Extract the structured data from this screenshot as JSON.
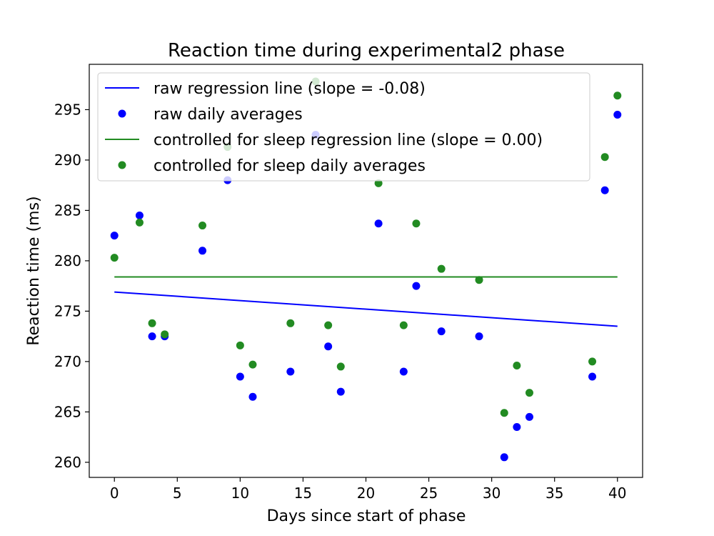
{
  "chart_data": {
    "type": "scatter",
    "title": "Reaction time during experimental2 phase",
    "xlabel": "Days since start of phase",
    "ylabel": "Reaction time (ms)",
    "xlim": [
      -2,
      42
    ],
    "ylim": [
      258.5,
      299.5
    ],
    "xticks": [
      0,
      5,
      10,
      15,
      20,
      25,
      30,
      35,
      40
    ],
    "yticks": [
      260,
      265,
      270,
      275,
      280,
      285,
      290,
      295
    ],
    "grid": false,
    "legend_position": "upper-left",
    "series": [
      {
        "name": "raw regression line (slope = -0.08)",
        "kind": "line",
        "color": "#0000ff",
        "x": [
          0,
          40
        ],
        "y": [
          276.9,
          273.5
        ]
      },
      {
        "name": "raw daily averages",
        "kind": "scatter",
        "color": "#0000ff",
        "x": [
          0,
          2,
          3,
          4,
          7,
          9,
          10,
          11,
          14,
          16,
          17,
          18,
          21,
          23,
          24,
          26,
          29,
          31,
          32,
          33,
          38,
          39,
          40
        ],
        "y": [
          282.5,
          284.5,
          272.5,
          272.5,
          281.0,
          288.0,
          268.5,
          266.5,
          269.0,
          292.5,
          271.5,
          267.0,
          283.7,
          269.0,
          277.5,
          273.0,
          272.5,
          260.5,
          263.5,
          264.5,
          268.5,
          287.0,
          294.5
        ]
      },
      {
        "name": "controlled for sleep regression line (slope = 0.00)",
        "kind": "line",
        "color": "#228b22",
        "x": [
          0,
          40
        ],
        "y": [
          278.4,
          278.4
        ]
      },
      {
        "name": "controlled for sleep daily averages",
        "kind": "scatter",
        "color": "#228b22",
        "x": [
          0,
          2,
          3,
          4,
          7,
          9,
          10,
          11,
          14,
          16,
          17,
          18,
          21,
          23,
          24,
          26,
          29,
          31,
          32,
          33,
          38,
          39,
          40
        ],
        "y": [
          280.3,
          283.8,
          273.8,
          272.7,
          283.5,
          291.3,
          271.6,
          269.7,
          273.8,
          297.8,
          273.6,
          269.5,
          287.7,
          273.6,
          283.7,
          279.2,
          278.1,
          264.9,
          269.6,
          266.9,
          270.0,
          290.3,
          296.4
        ]
      }
    ]
  }
}
